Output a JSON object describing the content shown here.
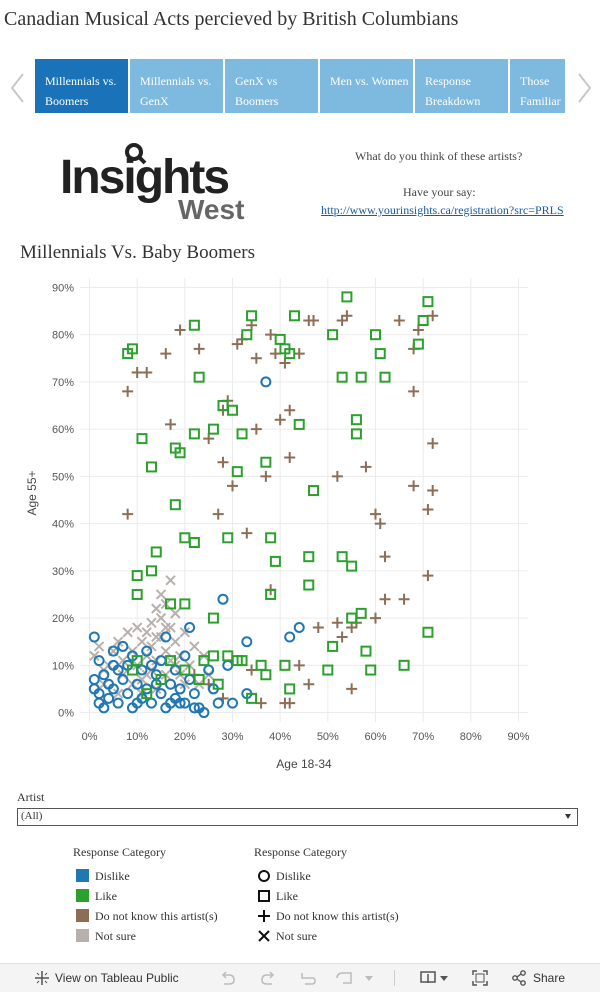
{
  "title": "Canadian Musical Acts percieved by British Columbians",
  "tabs": [
    {
      "label": "Millennials vs. Boomers",
      "active": true
    },
    {
      "label": "Millennials vs. GenX",
      "active": false
    },
    {
      "label": "GenX vs Boomers",
      "active": false
    },
    {
      "label": "Men vs. Women",
      "active": false
    },
    {
      "label": "Response Breakdown",
      "active": false
    },
    {
      "label": "Those Familiar",
      "active": false
    }
  ],
  "logo": {
    "main": "Insights",
    "sub": "West"
  },
  "promo": {
    "question": "What do you think of these artists?",
    "have_say": "Have your say:",
    "link": "http://www.yourinsights.ca/registration?src=PRLS"
  },
  "filter": {
    "label": "Artist",
    "value": "(All)"
  },
  "legend_color": {
    "title": "Response Category",
    "items": [
      {
        "label": "Dislike",
        "color": "#1f77b4"
      },
      {
        "label": "Like",
        "color": "#2ca02c"
      },
      {
        "label": "Do not know this artist(s)",
        "color": "#8c6d56"
      },
      {
        "label": "Not sure",
        "color": "#b8b0ac"
      }
    ]
  },
  "legend_shape": {
    "title": "Response Category",
    "items": [
      {
        "label": "Dislike",
        "shape": "circle"
      },
      {
        "label": "Like",
        "shape": "square"
      },
      {
        "label": "Do not know this artist(s)",
        "shape": "plus"
      },
      {
        "label": "Not sure",
        "shape": "x"
      }
    ]
  },
  "footer": {
    "view_label": "View on Tableau Public",
    "share_label": "Share"
  },
  "chart_data": {
    "type": "scatter",
    "title": "Millennials Vs. Baby Boomers",
    "xlabel": "Age 18-34",
    "ylabel": "Age 55+",
    "xlim": [
      -0.02,
      0.92
    ],
    "ylim": [
      -0.02,
      0.92
    ],
    "x_ticks": [
      "0%",
      "10%",
      "20%",
      "30%",
      "40%",
      "50%",
      "60%",
      "70%",
      "80%",
      "90%"
    ],
    "y_ticks": [
      "0%",
      "10%",
      "20%",
      "30%",
      "40%",
      "50%",
      "60%",
      "70%",
      "80%",
      "90%"
    ],
    "grid": true,
    "series": [
      {
        "name": "Dislike",
        "shape": "circle",
        "color": "#1f77b4",
        "points": [
          [
            0.01,
            0.16
          ],
          [
            0.01,
            0.07
          ],
          [
            0.01,
            0.05
          ],
          [
            0.02,
            0.04
          ],
          [
            0.02,
            0.02
          ],
          [
            0.03,
            0.08
          ],
          [
            0.04,
            0.06
          ],
          [
            0.04,
            0.03
          ],
          [
            0.05,
            0.1
          ],
          [
            0.05,
            0.05
          ],
          [
            0.06,
            0.02
          ],
          [
            0.07,
            0.14
          ],
          [
            0.07,
            0.07
          ],
          [
            0.08,
            0.04
          ],
          [
            0.09,
            0.01
          ],
          [
            0.09,
            0.12
          ],
          [
            0.1,
            0.06
          ],
          [
            0.11,
            0.03
          ],
          [
            0.11,
            0.09
          ],
          [
            0.12,
            0.13
          ],
          [
            0.12,
            0.05
          ],
          [
            0.13,
            0.02
          ],
          [
            0.14,
            0.08
          ],
          [
            0.15,
            0.04
          ],
          [
            0.15,
            0.11
          ],
          [
            0.16,
            0.16
          ],
          [
            0.16,
            0.01
          ],
          [
            0.17,
            0.06
          ],
          [
            0.18,
            0.03
          ],
          [
            0.18,
            0.09
          ],
          [
            0.19,
            0.05
          ],
          [
            0.2,
            0.12
          ],
          [
            0.2,
            0.02
          ],
          [
            0.21,
            0.18
          ],
          [
            0.21,
            0.07
          ],
          [
            0.22,
            0.04
          ],
          [
            0.23,
            0.01
          ],
          [
            0.24,
            0.0
          ],
          [
            0.25,
            0.09
          ],
          [
            0.26,
            0.05
          ],
          [
            0.27,
            0.02
          ],
          [
            0.28,
            0.24
          ],
          [
            0.29,
            0.1
          ],
          [
            0.3,
            0.02
          ],
          [
            0.33,
            0.04
          ],
          [
            0.33,
            0.15
          ],
          [
            0.37,
            0.7
          ],
          [
            0.42,
            0.16
          ],
          [
            0.44,
            0.18
          ],
          [
            0.02,
            0.11
          ],
          [
            0.03,
            0.01
          ],
          [
            0.06,
            0.09
          ],
          [
            0.08,
            0.1
          ],
          [
            0.13,
            0.1
          ],
          [
            0.17,
            0.02
          ],
          [
            0.19,
            0.02
          ],
          [
            0.22,
            0.01
          ],
          [
            0.14,
            0.06
          ],
          [
            0.1,
            0.02
          ],
          [
            0.05,
            0.13
          ]
        ]
      },
      {
        "name": "Like",
        "shape": "square",
        "color": "#2ca02c",
        "points": [
          [
            0.08,
            0.76
          ],
          [
            0.09,
            0.77
          ],
          [
            0.1,
            0.29
          ],
          [
            0.1,
            0.25
          ],
          [
            0.11,
            0.58
          ],
          [
            0.13,
            0.3
          ],
          [
            0.13,
            0.52
          ],
          [
            0.14,
            0.34
          ],
          [
            0.17,
            0.23
          ],
          [
            0.18,
            0.44
          ],
          [
            0.18,
            0.56
          ],
          [
            0.19,
            0.55
          ],
          [
            0.2,
            0.23
          ],
          [
            0.2,
            0.37
          ],
          [
            0.22,
            0.36
          ],
          [
            0.22,
            0.59
          ],
          [
            0.22,
            0.82
          ],
          [
            0.23,
            0.71
          ],
          [
            0.26,
            0.6
          ],
          [
            0.26,
            0.2
          ],
          [
            0.28,
            0.65
          ],
          [
            0.29,
            0.37
          ],
          [
            0.3,
            0.64
          ],
          [
            0.31,
            0.51
          ],
          [
            0.32,
            0.59
          ],
          [
            0.33,
            0.8
          ],
          [
            0.34,
            0.84
          ],
          [
            0.37,
            0.53
          ],
          [
            0.38,
            0.25
          ],
          [
            0.38,
            0.37
          ],
          [
            0.39,
            0.32
          ],
          [
            0.4,
            0.79
          ],
          [
            0.41,
            0.77
          ],
          [
            0.42,
            0.76
          ],
          [
            0.43,
            0.84
          ],
          [
            0.44,
            0.61
          ],
          [
            0.46,
            0.33
          ],
          [
            0.46,
            0.27
          ],
          [
            0.47,
            0.47
          ],
          [
            0.51,
            0.8
          ],
          [
            0.53,
            0.71
          ],
          [
            0.53,
            0.33
          ],
          [
            0.54,
            0.88
          ],
          [
            0.55,
            0.31
          ],
          [
            0.56,
            0.59
          ],
          [
            0.56,
            0.62
          ],
          [
            0.57,
            0.71
          ],
          [
            0.6,
            0.8
          ],
          [
            0.61,
            0.76
          ],
          [
            0.62,
            0.71
          ],
          [
            0.69,
            0.78
          ],
          [
            0.7,
            0.83
          ],
          [
            0.71,
            0.87
          ],
          [
            0.71,
            0.17
          ],
          [
            0.66,
            0.1
          ],
          [
            0.58,
            0.13
          ],
          [
            0.59,
            0.09
          ],
          [
            0.55,
            0.2
          ],
          [
            0.57,
            0.21
          ],
          [
            0.5,
            0.09
          ],
          [
            0.51,
            0.14
          ],
          [
            0.41,
            0.1
          ],
          [
            0.42,
            0.05
          ],
          [
            0.36,
            0.1
          ],
          [
            0.37,
            0.08
          ],
          [
            0.34,
            0.03
          ],
          [
            0.32,
            0.11
          ],
          [
            0.29,
            0.12
          ],
          [
            0.27,
            0.06
          ],
          [
            0.26,
            0.12
          ],
          [
            0.24,
            0.11
          ],
          [
            0.23,
            0.07
          ],
          [
            0.2,
            0.09
          ],
          [
            0.17,
            0.11
          ],
          [
            0.15,
            0.07
          ],
          [
            0.12,
            0.04
          ],
          [
            0.1,
            0.11
          ],
          [
            0.09,
            0.09
          ],
          [
            0.31,
            0.11
          ]
        ]
      },
      {
        "name": "Do not know this artist(s)",
        "shape": "plus",
        "color": "#8c6d56",
        "points": [
          [
            0.08,
            0.68
          ],
          [
            0.08,
            0.42
          ],
          [
            0.1,
            0.72
          ],
          [
            0.12,
            0.72
          ],
          [
            0.16,
            0.76
          ],
          [
            0.17,
            0.61
          ],
          [
            0.19,
            0.81
          ],
          [
            0.23,
            0.77
          ],
          [
            0.25,
            0.58
          ],
          [
            0.27,
            0.42
          ],
          [
            0.28,
            0.53
          ],
          [
            0.28,
            0.64
          ],
          [
            0.29,
            0.66
          ],
          [
            0.3,
            0.48
          ],
          [
            0.31,
            0.78
          ],
          [
            0.32,
            0.79
          ],
          [
            0.33,
            0.38
          ],
          [
            0.34,
            0.82
          ],
          [
            0.35,
            0.75
          ],
          [
            0.35,
            0.6
          ],
          [
            0.37,
            0.5
          ],
          [
            0.38,
            0.8
          ],
          [
            0.39,
            0.76
          ],
          [
            0.4,
            0.62
          ],
          [
            0.41,
            0.74
          ],
          [
            0.42,
            0.64
          ],
          [
            0.42,
            0.54
          ],
          [
            0.44,
            0.76
          ],
          [
            0.46,
            0.83
          ],
          [
            0.47,
            0.83
          ],
          [
            0.52,
            0.5
          ],
          [
            0.53,
            0.83
          ],
          [
            0.54,
            0.84
          ],
          [
            0.58,
            0.52
          ],
          [
            0.6,
            0.42
          ],
          [
            0.61,
            0.4
          ],
          [
            0.62,
            0.33
          ],
          [
            0.65,
            0.83
          ],
          [
            0.68,
            0.77
          ],
          [
            0.68,
            0.68
          ],
          [
            0.68,
            0.48
          ],
          [
            0.69,
            0.81
          ],
          [
            0.71,
            0.43
          ],
          [
            0.71,
            0.29
          ],
          [
            0.72,
            0.47
          ],
          [
            0.72,
            0.57
          ],
          [
            0.72,
            0.84
          ],
          [
            0.62,
            0.24
          ],
          [
            0.66,
            0.24
          ],
          [
            0.6,
            0.2
          ],
          [
            0.56,
            0.19
          ],
          [
            0.52,
            0.19
          ],
          [
            0.55,
            0.18
          ],
          [
            0.53,
            0.16
          ],
          [
            0.48,
            0.18
          ],
          [
            0.46,
            0.06
          ],
          [
            0.55,
            0.05
          ],
          [
            0.44,
            0.1
          ],
          [
            0.42,
            0.02
          ],
          [
            0.41,
            0.02
          ],
          [
            0.36,
            0.02
          ],
          [
            0.34,
            0.09
          ],
          [
            0.28,
            0.03
          ],
          [
            0.25,
            0.06
          ],
          [
            0.22,
            0.08
          ],
          [
            0.38,
            0.26
          ]
        ]
      },
      {
        "name": "Not sure",
        "shape": "x",
        "color": "#b8b0ac",
        "points": [
          [
            0.01,
            0.12
          ],
          [
            0.02,
            0.14
          ],
          [
            0.03,
            0.09
          ],
          [
            0.04,
            0.1
          ],
          [
            0.05,
            0.13
          ],
          [
            0.06,
            0.15
          ],
          [
            0.07,
            0.11
          ],
          [
            0.07,
            0.08
          ],
          [
            0.08,
            0.17
          ],
          [
            0.09,
            0.13
          ],
          [
            0.09,
            0.06
          ],
          [
            0.1,
            0.18
          ],
          [
            0.1,
            0.1
          ],
          [
            0.11,
            0.15
          ],
          [
            0.11,
            0.07
          ],
          [
            0.12,
            0.12
          ],
          [
            0.12,
            0.17
          ],
          [
            0.13,
            0.09
          ],
          [
            0.13,
            0.14
          ],
          [
            0.13,
            0.19
          ],
          [
            0.14,
            0.22
          ],
          [
            0.14,
            0.11
          ],
          [
            0.15,
            0.16
          ],
          [
            0.15,
            0.2
          ],
          [
            0.15,
            0.25
          ],
          [
            0.16,
            0.13
          ],
          [
            0.16,
            0.23
          ],
          [
            0.16,
            0.08
          ],
          [
            0.17,
            0.28
          ],
          [
            0.17,
            0.18
          ],
          [
            0.17,
            0.11
          ],
          [
            0.18,
            0.15
          ],
          [
            0.18,
            0.21
          ],
          [
            0.19,
            0.08
          ],
          [
            0.19,
            0.12
          ],
          [
            0.2,
            0.17
          ],
          [
            0.21,
            0.1
          ],
          [
            0.22,
            0.14
          ],
          [
            0.23,
            0.06
          ],
          [
            0.24,
            0.12
          ],
          [
            0.25,
            0.08
          ],
          [
            0.11,
            0.04
          ],
          [
            0.14,
            0.05
          ],
          [
            0.06,
            0.04
          ],
          [
            0.03,
            0.06
          ],
          [
            0.12,
            0.08
          ],
          [
            0.14,
            0.16
          ],
          [
            0.16,
            0.18
          ],
          [
            0.18,
            0.1
          ],
          [
            0.2,
            0.06
          ]
        ]
      }
    ]
  }
}
